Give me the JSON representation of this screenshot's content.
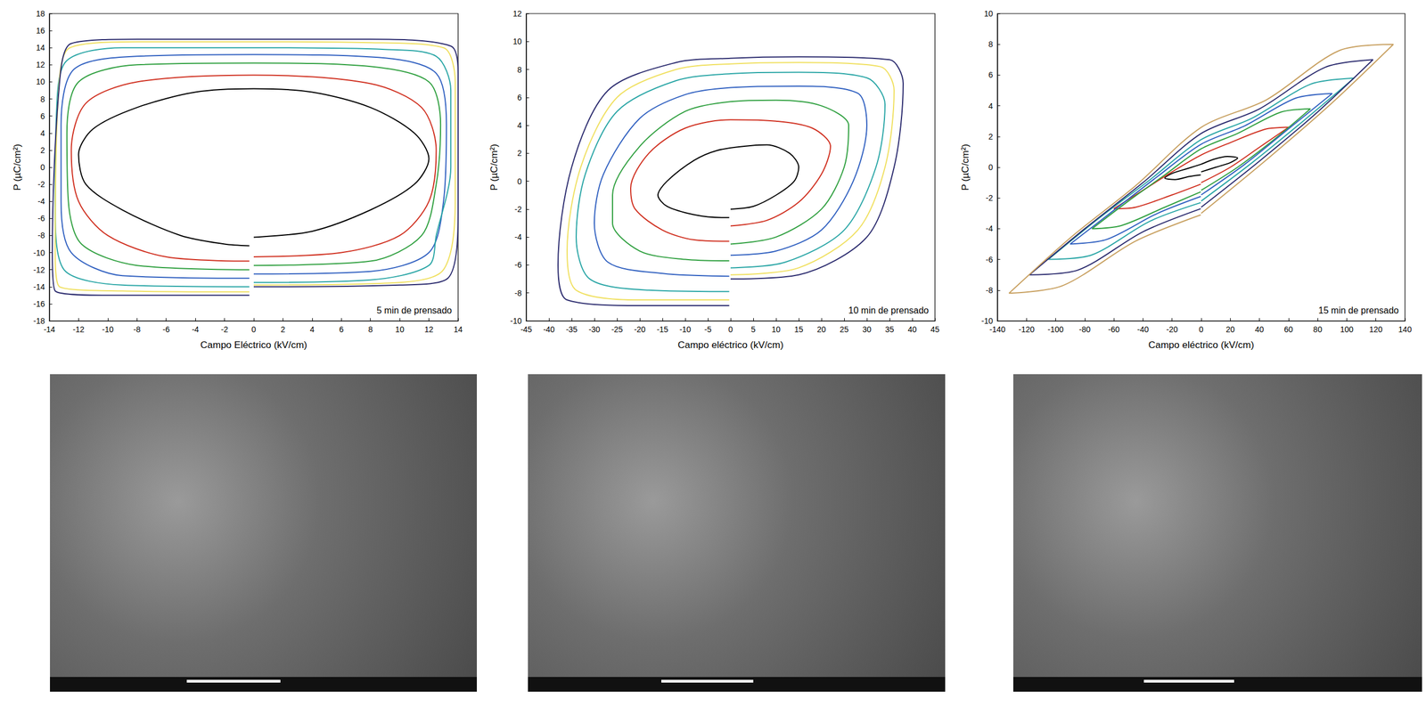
{
  "chart_data": [
    {
      "type": "line",
      "x_label": "Campo Eléctrico (kV/cm)",
      "y_label": "P (µC/cm²)",
      "annotation": "5 min de prensado",
      "xlim": [
        -14,
        14
      ],
      "xticks": [
        -14,
        -12,
        -10,
        -8,
        -6,
        -4,
        -2,
        0,
        2,
        4,
        6,
        8,
        10,
        12,
        14
      ],
      "ylim": [
        -18,
        18
      ],
      "yticks": [
        -18,
        -16,
        -14,
        -12,
        -10,
        -8,
        -6,
        -4,
        -2,
        0,
        2,
        4,
        6,
        8,
        10,
        12,
        14,
        16,
        18
      ],
      "grid": false,
      "marker": "none",
      "series": [
        {
          "color": "#000000",
          "x": [
            0,
            4,
            8,
            11,
            12,
            11,
            8,
            4,
            0,
            -4,
            -8,
            -11,
            -12,
            -11.5,
            -9,
            -5,
            -2,
            -0.3
          ],
          "values": [
            -8.2,
            -7.5,
            -5,
            -2,
            1,
            4,
            7,
            8.8,
            9.2,
            8.8,
            7,
            4.5,
            1.5,
            -2,
            -5,
            -8,
            -9,
            -9.2
          ]
        },
        {
          "color": "#d03020",
          "x": [
            0,
            6,
            10,
            12,
            12.5,
            11.5,
            8,
            0,
            -8,
            -11.5,
            -12.5,
            -12,
            -10,
            -6,
            -0.3
          ],
          "values": [
            -10.5,
            -10,
            -8,
            -4,
            2,
            7,
            9.8,
            10.8,
            10,
            7.5,
            2,
            -4,
            -8,
            -10.5,
            -11
          ]
        },
        {
          "color": "#30a040",
          "x": [
            0,
            8,
            11.5,
            12.5,
            12.8,
            12,
            8,
            0,
            -8,
            -12,
            -12.8,
            -12.7,
            -11.8,
            -8,
            -0.3
          ],
          "values": [
            -11.5,
            -11,
            -8,
            -2,
            5,
            10,
            11.8,
            12.2,
            12,
            10,
            4,
            -4,
            -9,
            -11.5,
            -12
          ]
        },
        {
          "color": "#3060c0",
          "x": [
            0,
            8,
            12,
            13,
            13.2,
            12.5,
            9,
            0,
            -8,
            -12.3,
            -13.2,
            -13.2,
            -12.5,
            -9,
            -0.3
          ],
          "values": [
            -12.5,
            -12.2,
            -10,
            -4,
            5,
            11,
            12.8,
            13.2,
            13,
            11.5,
            5,
            -4,
            -10,
            -12.7,
            -13
          ]
        },
        {
          "color": "#2aa6a6",
          "x": [
            0,
            8,
            12,
            12.5,
            13.5,
            13.5,
            12.5,
            9,
            0,
            -9,
            -12.8,
            -13.5,
            -13.6,
            -13,
            -9,
            -0.3
          ],
          "values": [
            -13.5,
            -13.2,
            -11.5,
            -8,
            0,
            9,
            13,
            13.8,
            14,
            14,
            12.5,
            7,
            -5,
            -12,
            -13.8,
            -14
          ]
        },
        {
          "color": "#f0e060",
          "x": [
            0,
            10,
            13,
            13.8,
            13.8,
            13,
            8,
            0,
            -8,
            -12.6,
            -13.4,
            -13.6,
            -13.3,
            -9,
            -0.3
          ],
          "values": [
            -13.8,
            -13.5,
            -12,
            -4,
            10,
            14,
            14.6,
            14.7,
            14.7,
            14,
            8,
            -10,
            -14,
            -14.5,
            -14.6
          ]
        },
        {
          "color": "#2b2b6e",
          "x": [
            0,
            10,
            13.3,
            14,
            14,
            13.5,
            8,
            0,
            -8,
            -12.5,
            -13.3,
            -13.8,
            -13.6,
            -10,
            -0.3
          ],
          "values": [
            -14,
            -13.8,
            -13,
            -5,
            11,
            14.2,
            15,
            15,
            15,
            14.5,
            10,
            -10,
            -14.5,
            -15,
            -15
          ]
        }
      ]
    },
    {
      "type": "line",
      "x_label": "Campo eléctrico (kV/cm)",
      "y_label": "P (µC/cm²)",
      "annotation": "10 min de prensado",
      "xlim": [
        -45,
        45
      ],
      "xticks": [
        -45,
        -40,
        -35,
        -30,
        -25,
        -20,
        -15,
        -10,
        -5,
        0,
        5,
        10,
        15,
        20,
        25,
        30,
        35,
        40,
        45
      ],
      "ylim": [
        -10,
        12
      ],
      "yticks": [
        -10,
        -8,
        -6,
        -4,
        -2,
        0,
        2,
        4,
        6,
        8,
        10,
        12
      ],
      "grid": false,
      "marker": "none",
      "series": [
        {
          "color": "#000000",
          "x": [
            0,
            5,
            10,
            14,
            15,
            13,
            8,
            3,
            -3,
            -8,
            -14,
            -16,
            -14,
            -8,
            -2,
            -0.3
          ],
          "values": [
            -2,
            -1.8,
            -1,
            0,
            1,
            2,
            2.6,
            2.5,
            2.2,
            1.5,
            0,
            -1,
            -1.8,
            -2.4,
            -2.6,
            -2.6
          ]
        },
        {
          "color": "#d03020",
          "x": [
            0,
            8,
            15,
            20,
            22,
            18,
            10,
            0,
            -10,
            -18,
            -22,
            -21,
            -15,
            -8,
            -0.3
          ],
          "values": [
            -3.2,
            -2.8,
            -1.5,
            0.5,
            2.5,
            3.8,
            4.3,
            4.4,
            3.8,
            2,
            -0.5,
            -2,
            -3.5,
            -4.2,
            -4.3
          ]
        },
        {
          "color": "#30a040",
          "x": [
            0,
            10,
            20,
            25,
            26,
            20,
            10,
            0,
            -10,
            -20,
            -26,
            -26,
            -20,
            -10,
            -0.3
          ],
          "values": [
            -4.5,
            -4,
            -2,
            1,
            4,
            5.4,
            5.8,
            5.7,
            5,
            2.5,
            -1,
            -3,
            -5,
            -5.6,
            -5.7
          ]
        },
        {
          "color": "#3060c0",
          "x": [
            0,
            10,
            20,
            27,
            30,
            28,
            15,
            0,
            -10,
            -20,
            -28,
            -30,
            -27,
            -15,
            -0.3
          ],
          "values": [
            -5.3,
            -5,
            -3.5,
            0,
            4,
            6.3,
            6.8,
            6.7,
            6.2,
            4.5,
            0.5,
            -3,
            -5.8,
            -6.6,
            -6.8
          ]
        },
        {
          "color": "#2aa6a6",
          "x": [
            0,
            12,
            25,
            32,
            34,
            30,
            15,
            0,
            -12,
            -25,
            -32,
            -34,
            -31,
            -18,
            -0.3
          ],
          "values": [
            -6.2,
            -5.8,
            -3.5,
            1,
            5.5,
            7.4,
            7.8,
            7.7,
            7.2,
            5,
            0.5,
            -4,
            -7,
            -7.8,
            -7.9
          ]
        },
        {
          "color": "#f0e060",
          "x": [
            0,
            15,
            28,
            34,
            36,
            33,
            15,
            0,
            -12,
            -25,
            -33,
            -36,
            -34,
            -20,
            -0.3
          ],
          "values": [
            -6.7,
            -6.2,
            -3.5,
            1,
            6.5,
            8.2,
            8.5,
            8.4,
            8,
            6,
            1,
            -5,
            -7.8,
            -8.5,
            -8.5
          ]
        },
        {
          "color": "#2b2b6e",
          "x": [
            0,
            15,
            30,
            36,
            38,
            35,
            15,
            0,
            -12,
            -27,
            -35,
            -38,
            -36,
            -20,
            -0.3
          ],
          "values": [
            -7,
            -6.7,
            -4,
            1,
            7,
            8.7,
            8.9,
            8.8,
            8.5,
            6.5,
            1,
            -6,
            -8.5,
            -8.9,
            -8.9
          ]
        }
      ]
    },
    {
      "type": "line",
      "x_label": "Campo eléctrico (kV/cm)",
      "y_label": "P (µC/cm²)",
      "annotation": "15 min de prensado",
      "xlim": [
        -140,
        140
      ],
      "xticks": [
        -140,
        -120,
        -100,
        -80,
        -60,
        -40,
        -20,
        0,
        20,
        40,
        60,
        80,
        100,
        120,
        140
      ],
      "ylim": [
        -10,
        10
      ],
      "yticks": [
        -10,
        -8,
        -6,
        -4,
        -2,
        0,
        2,
        4,
        6,
        8,
        10
      ],
      "grid": false,
      "marker": "none",
      "series": [
        {
          "color": "#000000",
          "x": [
            0,
            10,
            20,
            25,
            18,
            8,
            0,
            -10,
            -20,
            -25,
            -18,
            -8,
            -0.3
          ],
          "values": [
            -0.3,
            0,
            0.3,
            0.6,
            0.7,
            0.5,
            0.2,
            -0.1,
            -0.4,
            -0.7,
            -0.8,
            -0.6,
            -0.5
          ]
        },
        {
          "color": "#d03020",
          "x": [
            0,
            20,
            40,
            60,
            45,
            20,
            0,
            -20,
            -40,
            -60,
            -45,
            -20,
            -0.3
          ],
          "values": [
            -1,
            0,
            1.3,
            2.6,
            2.5,
            1.6,
            0.8,
            -0.3,
            -1.5,
            -2.7,
            -2.6,
            -1.8,
            -1.1
          ]
        },
        {
          "color": "#30a040",
          "x": [
            0,
            25,
            50,
            75,
            55,
            25,
            0,
            -25,
            -50,
            -75,
            -55,
            -25,
            -0.3
          ],
          "values": [
            -1.5,
            0,
            1.8,
            3.8,
            3.6,
            2.2,
            1.2,
            -0.5,
            -2.2,
            -4,
            -3.8,
            -2.6,
            -1.6
          ]
        },
        {
          "color": "#3060c0",
          "x": [
            0,
            30,
            60,
            90,
            65,
            30,
            0,
            -30,
            -60,
            -90,
            -65,
            -30,
            -0.3
          ],
          "values": [
            -1.8,
            0.2,
            2.5,
            4.8,
            4.5,
            2.7,
            1.5,
            -0.6,
            -2.8,
            -5,
            -4.7,
            -3,
            -1.9
          ]
        },
        {
          "color": "#2aa6a6",
          "x": [
            0,
            35,
            70,
            105,
            75,
            35,
            0,
            -35,
            -70,
            -105,
            -75,
            -35,
            -0.3
          ],
          "values": [
            -2.2,
            0.3,
            3,
            5.8,
            5.4,
            3.2,
            1.8,
            -0.8,
            -3.3,
            -6,
            -5.7,
            -3.5,
            -2.3
          ]
        },
        {
          "color": "#2b2b6e",
          "x": [
            0,
            40,
            80,
            118,
            85,
            40,
            0,
            -40,
            -80,
            -118,
            -85,
            -40,
            -0.3
          ],
          "values": [
            -2.6,
            0.4,
            3.6,
            7,
            6.5,
            3.8,
            2.2,
            -1,
            -4,
            -7,
            -6.7,
            -4.2,
            -2.7
          ]
        },
        {
          "color": "#c8a060",
          "x": [
            0,
            45,
            90,
            132,
            95,
            45,
            0,
            -45,
            -90,
            -132,
            -95,
            -45,
            -0.3
          ],
          "values": [
            -3,
            0.5,
            4.2,
            8,
            7.6,
            4.4,
            2.6,
            -1.2,
            -4.6,
            -8.2,
            -7.7,
            -4.8,
            -3.1
          ]
        }
      ]
    }
  ]
}
